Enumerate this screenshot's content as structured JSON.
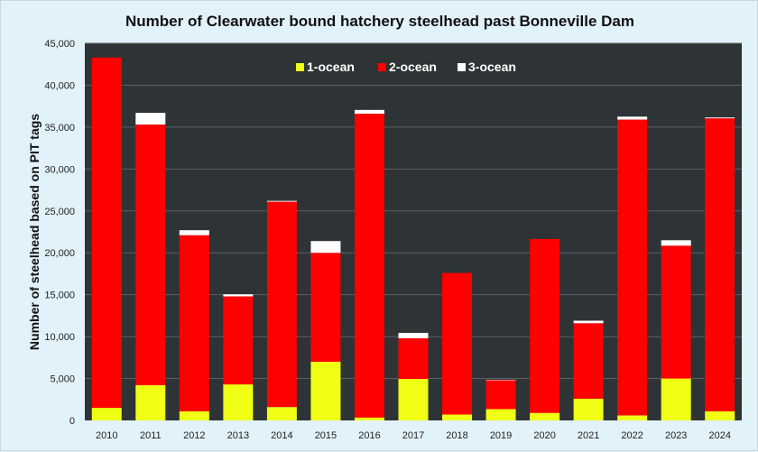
{
  "chart_data": {
    "type": "bar",
    "stacked": true,
    "title": "Number of Clearwater bound hatchery steelhead past Bonneville Dam",
    "xlabel": "",
    "ylabel": "Number of steelhead based on PIT tags",
    "ylim": [
      0,
      45000
    ],
    "yticks": [
      0,
      5000,
      10000,
      15000,
      20000,
      25000,
      30000,
      35000,
      40000,
      45000
    ],
    "ytick_labels": [
      "0",
      "5,000",
      "10,000",
      "15,000",
      "20,000",
      "25,000",
      "30,000",
      "35,000",
      "40,000",
      "45,000"
    ],
    "grid": true,
    "legend_position": "top-center",
    "categories": [
      "2010",
      "2011",
      "2012",
      "2013",
      "2014",
      "2015",
      "2016",
      "2017",
      "2018",
      "2019",
      "2020",
      "2021",
      "2022",
      "2023",
      "2024"
    ],
    "series": [
      {
        "name": "1-ocean",
        "color": "#f0ff14",
        "values": [
          1500,
          4200,
          1100,
          4300,
          1600,
          7000,
          350,
          4950,
          700,
          1350,
          900,
          2600,
          600,
          5000,
          1100
        ]
      },
      {
        "name": "2-ocean",
        "color": "#ff0000",
        "values": [
          41800,
          31100,
          21000,
          10500,
          24500,
          13000,
          36250,
          4850,
          16900,
          3450,
          20750,
          9000,
          35300,
          15850,
          34950
        ]
      },
      {
        "name": "3-ocean",
        "color": "#ffffff",
        "values": [
          0,
          1400,
          600,
          250,
          100,
          1400,
          450,
          650,
          0,
          50,
          0,
          300,
          350,
          650,
          100
        ]
      }
    ],
    "colors": {
      "plot_background": "#2e3336",
      "page_background": "#e2f2fa",
      "grid": "#5a6064"
    }
  }
}
